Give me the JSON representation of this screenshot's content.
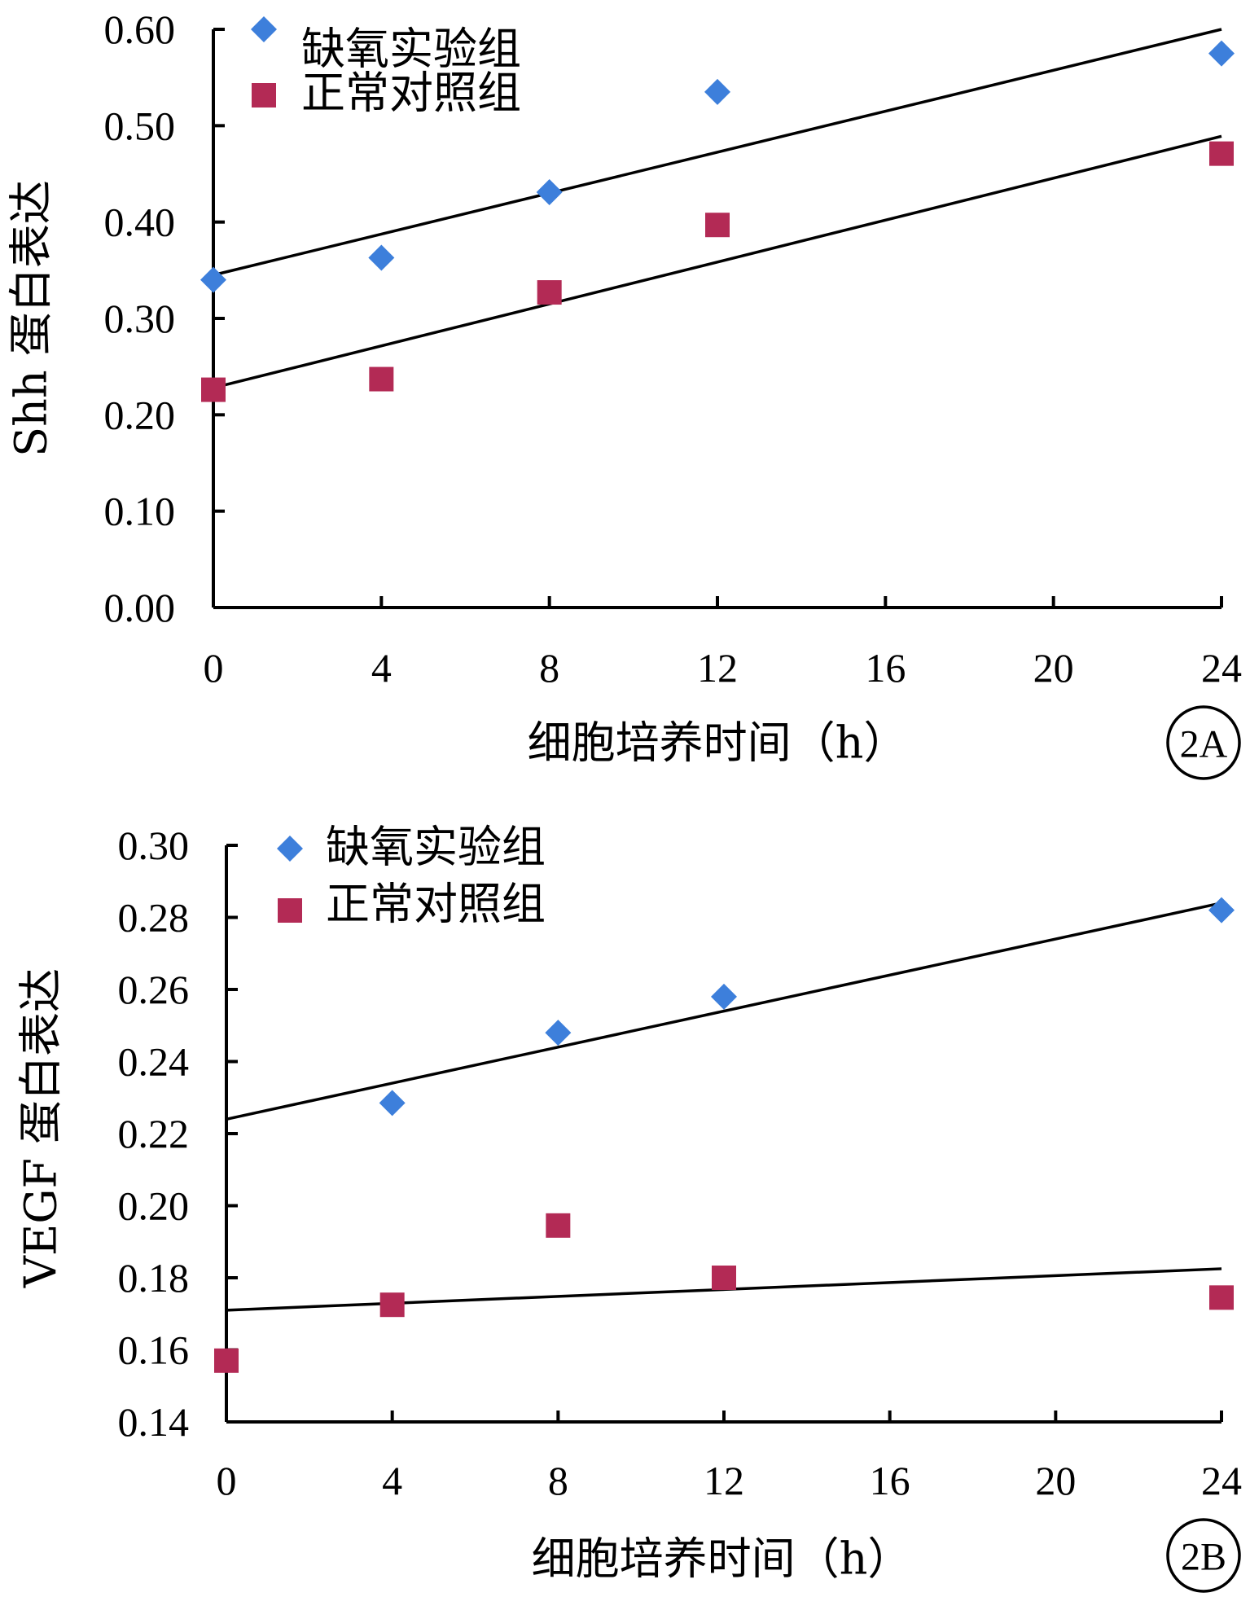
{
  "chart_data": [
    {
      "id": "2A",
      "type": "scatter",
      "panel_label": "2A",
      "xlabel": "细胞培养时间（h）",
      "ylabel": "Shh 蛋白表达",
      "xlim": [
        0,
        24
      ],
      "ylim": [
        0,
        0.6
      ],
      "xticks": [
        "0",
        "4",
        "8",
        "12",
        "16",
        "20",
        "24"
      ],
      "xtick_values": [
        0,
        4,
        8,
        12,
        16,
        20,
        24
      ],
      "yticks": [
        "0.00",
        "0.10",
        "0.20",
        "0.30",
        "0.40",
        "0.50",
        "0.60"
      ],
      "ytick_values": [
        0,
        0.1,
        0.2,
        0.3,
        0.4,
        0.5,
        0.6
      ],
      "legend_position": "top-left",
      "grid": false,
      "series": [
        {
          "name": "缺氧实验组",
          "marker": "diamond",
          "color": "#3d7fdb",
          "x": [
            0,
            4,
            8,
            12,
            24
          ],
          "y": [
            0.34,
            0.363,
            0.431,
            0.535,
            0.575
          ],
          "trendline": [
            [
              0,
              0.345
            ],
            [
              24,
              0.6
            ]
          ]
        },
        {
          "name": "正常对照组",
          "marker": "square",
          "color": "#b32a55",
          "x": [
            0,
            4,
            8,
            12,
            24
          ],
          "y": [
            0.226,
            0.237,
            0.327,
            0.397,
            0.471
          ],
          "trendline": [
            [
              0,
              0.228
            ],
            [
              24,
              0.489
            ]
          ]
        }
      ]
    },
    {
      "id": "2B",
      "type": "scatter",
      "panel_label": "2B",
      "xlabel": "细胞培养时间（h）",
      "ylabel": "VEGF 蛋白表达",
      "xlim": [
        0,
        24
      ],
      "ylim": [
        0.14,
        0.3
      ],
      "xticks": [
        "0",
        "4",
        "8",
        "12",
        "16",
        "20",
        "24"
      ],
      "xtick_values": [
        0,
        4,
        8,
        12,
        16,
        20,
        24
      ],
      "yticks": [
        "0.14",
        "0.16",
        "0.18",
        "0.20",
        "0.22",
        "0.24",
        "0.26",
        "0.28",
        "0.30"
      ],
      "ytick_values": [
        0.14,
        0.16,
        0.18,
        0.2,
        0.22,
        0.24,
        0.26,
        0.28,
        0.3
      ],
      "legend_position": "top-left",
      "grid": false,
      "series": [
        {
          "name": "缺氧实验组",
          "marker": "diamond",
          "color": "#3d7fdb",
          "x": [
            4,
            8,
            12,
            24
          ],
          "y": [
            0.2285,
            0.248,
            0.258,
            0.282
          ],
          "trendline": [
            [
              0,
              0.224
            ],
            [
              24,
              0.284
            ]
          ]
        },
        {
          "name": "正常对照组",
          "marker": "square",
          "color": "#b32a55",
          "x": [
            0,
            4,
            8,
            12,
            24
          ],
          "y": [
            0.157,
            0.1725,
            0.1945,
            0.18,
            0.1745
          ],
          "trendline": [
            [
              0,
              0.171
            ],
            [
              24,
              0.1825
            ]
          ]
        }
      ]
    }
  ]
}
